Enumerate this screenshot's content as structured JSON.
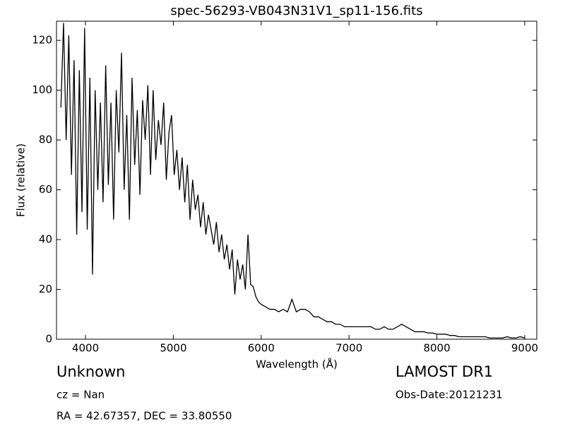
{
  "chart_data": {
    "type": "line",
    "title": "spec-56293-VB043N31V1_sp11-156.fits",
    "xlabel": "Wavelength (Å)",
    "ylabel": "Flux (relative)",
    "annotations": [
      "Unknown",
      "cz = Nan",
      "RA = 42.67357, DEC = 33.80550",
      "LAMOST DR1",
      "Obs-Date:20121231"
    ],
    "color": "#000000",
    "x": [
      3720,
      3750,
      3780,
      3810,
      3840,
      3870,
      3900,
      3930,
      3960,
      3990,
      4020,
      4050,
      4080,
      4110,
      4140,
      4170,
      4200,
      4230,
      4260,
      4290,
      4320,
      4350,
      4380,
      4410,
      4440,
      4470,
      4500,
      4530,
      4560,
      4590,
      4620,
      4650,
      4680,
      4710,
      4740,
      4770,
      4800,
      4830,
      4860,
      4890,
      4920,
      4950,
      4980,
      5010,
      5040,
      5070,
      5100,
      5130,
      5160,
      5190,
      5220,
      5250,
      5280,
      5310,
      5340,
      5370,
      5400,
      5430,
      5460,
      5490,
      5520,
      5550,
      5580,
      5610,
      5640,
      5670,
      5700,
      5730,
      5760,
      5790,
      5820,
      5850,
      5880,
      5910,
      5940,
      5970,
      6000,
      6050,
      6100,
      6150,
      6200,
      6250,
      6300,
      6350,
      6400,
      6450,
      6500,
      6550,
      6600,
      6650,
      6700,
      6750,
      6800,
      6850,
      6900,
      6950,
      7000,
      7050,
      7100,
      7150,
      7200,
      7250,
      7300,
      7350,
      7400,
      7450,
      7500,
      7550,
      7600,
      7650,
      7700,
      7750,
      7800,
      7850,
      7900,
      7950,
      8000,
      8050,
      8100,
      8150,
      8200,
      8250,
      8300,
      8350,
      8400,
      8450,
      8500,
      8550,
      8600,
      8650,
      8700,
      8750,
      8800,
      8850,
      8900,
      8950,
      9000
    ],
    "values": [
      93,
      127,
      80,
      122,
      66,
      112,
      42,
      108,
      51,
      125,
      44,
      105,
      26,
      100,
      60,
      95,
      55,
      110,
      62,
      95,
      48,
      100,
      75,
      115,
      60,
      90,
      48,
      105,
      70,
      92,
      58,
      96,
      80,
      102,
      66,
      100,
      72,
      88,
      78,
      95,
      64,
      83,
      90,
      66,
      76,
      60,
      73,
      55,
      70,
      48,
      64,
      52,
      58,
      45,
      55,
      42,
      50,
      44,
      38,
      47,
      35,
      42,
      32,
      38,
      28,
      36,
      18,
      32,
      24,
      30,
      20,
      42,
      22,
      21,
      17,
      15,
      14,
      13,
      12,
      12,
      11,
      12,
      11,
      16,
      11,
      12,
      12,
      11,
      9,
      9,
      8,
      7,
      7,
      6,
      6,
      5,
      5,
      5,
      5,
      5,
      5,
      5,
      4,
      4,
      5,
      4,
      4,
      5,
      6,
      5,
      4,
      3,
      3,
      3,
      2.5,
      2.5,
      2,
      2,
      2,
      1.5,
      1.5,
      1,
      1,
      1,
      1,
      1,
      1,
      1,
      0.5,
      0.5,
      0.5,
      0.5,
      1,
      0.5,
      0.5,
      1,
      0.5
    ],
    "xlim": [
      3670,
      9137
    ],
    "ylim": [
      0,
      127.7
    ],
    "xticks": [
      4000,
      5000,
      6000,
      7000,
      8000,
      9000
    ],
    "yticks": [
      0,
      20,
      40,
      60,
      80,
      100,
      120
    ]
  }
}
